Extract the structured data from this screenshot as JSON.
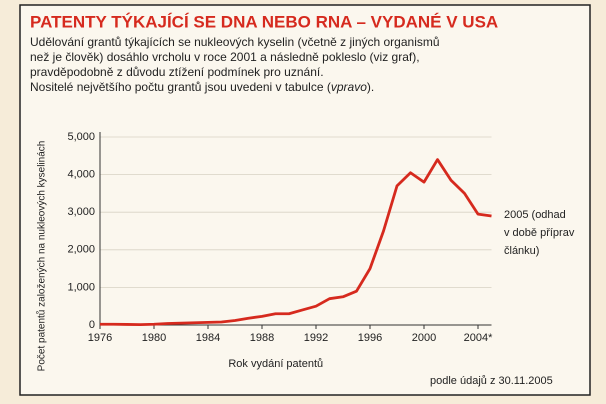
{
  "chart_data": {
    "type": "line",
    "title": "PATENTY TÝKAJÍCÍ SE DNA NEBO RNA – VYDANÉ V USA",
    "subtitle": [
      [
        "Udělování grantů týkajících se nukleových kyselin (včetně z jiných organismů"
      ],
      [
        "než je člověk) dosáhlo vrcholu v roce 2001 a následně pokleslo (viz graf),"
      ],
      [
        "pravděpodobně z důvodu ztížení podmínek pro uznání."
      ],
      [
        "Nositelé největšího počtu grantů jsou uvedeni v tabulce (",
        "vpravo",
        ")."
      ]
    ],
    "x_label": "Rok vydání patentů",
    "y_label": "Počet patentů založených na nukleových kyselinách",
    "annotation": [
      "2005 (odhad",
      "v době příprav",
      "článku)"
    ],
    "source": "podle údajů z 30.11.2005",
    "x": [
      1976,
      1977,
      1978,
      1979,
      1980,
      1981,
      1982,
      1983,
      1984,
      1985,
      1986,
      1987,
      1988,
      1989,
      1990,
      1991,
      1992,
      1993,
      1994,
      1995,
      1996,
      1997,
      1998,
      1999,
      2000,
      2001,
      2002,
      2003,
      2004,
      2005
    ],
    "series": [
      {
        "name": "Patenty",
        "color": "#d62a1e",
        "values": [
          20,
          20,
          15,
          10,
          20,
          40,
          50,
          60,
          70,
          80,
          120,
          180,
          230,
          300,
          300,
          400,
          500,
          700,
          750,
          900,
          1500,
          2500,
          3700,
          4050,
          3800,
          4400,
          3850,
          3500,
          2950,
          2900
        ]
      }
    ],
    "xlim": [
      1976,
      2005
    ],
    "xticks": [
      1976,
      1980,
      1984,
      1988,
      1992,
      1996,
      2000,
      {
        "value": 2004,
        "label": "2004*"
      }
    ],
    "ylim": [
      0,
      5000
    ],
    "yticks": [
      0,
      {
        "value": 1000,
        "label": "1,000"
      },
      {
        "value": 2000,
        "label": "2,000"
      },
      {
        "value": 3000,
        "label": "3,000"
      },
      {
        "value": 4000,
        "label": "4,000"
      },
      {
        "value": 5000,
        "label": "5,000"
      }
    ],
    "grid": true
  }
}
